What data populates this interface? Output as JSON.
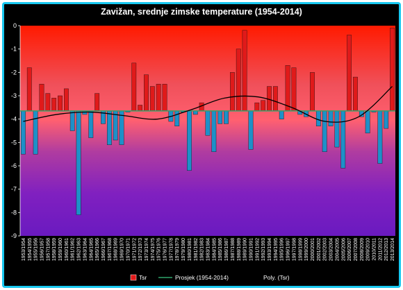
{
  "chart_data": {
    "type": "bar",
    "title": "Zavižan, srednje zimske temperature (1954-2014)",
    "xlabel": "",
    "ylabel": "",
    "ylim": [
      -9,
      0
    ],
    "yticks": [
      0,
      -1,
      -2,
      -3,
      -4,
      -5,
      -6,
      -7,
      -8,
      -9
    ],
    "baseline": -3.65,
    "grid": false,
    "legend_position": "bottom-right",
    "categories": [
      "1953/1954",
      "1954/1955",
      "1955/1956",
      "1956/1957",
      "1957/1958",
      "1958/1959",
      "1959/1960",
      "1960/1961",
      "1961/1962",
      "1962/1963",
      "1963/1964",
      "1964/1965",
      "1965/1966",
      "1966/1967",
      "1967/1968",
      "1968/1969",
      "1969/1970",
      "1970/1971",
      "1971/1972",
      "1972/1973",
      "1973/1974",
      "1974/1975",
      "1975/1976",
      "1976/1977",
      "1977/1978",
      "1978/1979",
      "1979/1980",
      "1980/1981",
      "1981/1982",
      "1982/1983",
      "1983/1984",
      "1984/1985",
      "1985/1986",
      "1986/1987",
      "1987/1988",
      "1988/1989",
      "1989/1990",
      "1990/1991",
      "1991/1992",
      "1992/1993",
      "1993/1994",
      "1994/1995",
      "1995/1996",
      "1996/1997",
      "1997/1998",
      "1998/1999",
      "1999/2000",
      "2000/2001",
      "2001/2002",
      "2002/2003",
      "2003/2004",
      "2004/2005",
      "2005/2006",
      "2006/2007",
      "2007/2008",
      "2008/2009",
      "2009/2010",
      "2010/2011",
      "2011/2012",
      "2012/2013",
      "2013/2014"
    ],
    "series": [
      {
        "name": "Tsr",
        "values": [
          -5.5,
          -1.8,
          -5.5,
          -2.5,
          -2.9,
          -3.1,
          -3.0,
          -2.7,
          -4.5,
          -8.1,
          -3.8,
          -4.8,
          -2.9,
          -4.2,
          -5.1,
          -4.9,
          -5.1,
          -3.7,
          -1.6,
          -3.4,
          -2.1,
          -2.6,
          -2.5,
          -2.5,
          -4.1,
          -4.3,
          -3.7,
          -6.2,
          -3.8,
          -3.3,
          -4.7,
          -5.4,
          -4.2,
          -4.2,
          -2.0,
          -1.0,
          -0.2,
          -5.3,
          -3.3,
          -3.2,
          -2.6,
          -2.6,
          -4.0,
          -1.7,
          -1.8,
          -3.8,
          -3.9,
          -2.0,
          -4.3,
          -5.4,
          -4.3,
          -5.2,
          -6.1,
          -0.4,
          -2.2,
          -3.9,
          -4.6,
          -3.7,
          -5.9,
          -4.4,
          -0.1
        ],
        "color": "#e01a1a"
      },
      {
        "name": "Prosjek (1954-2014)",
        "value": -3.65,
        "color": "#2fa46a"
      },
      {
        "name": "Poly. (Tsr)",
        "trend": [
          -4.1,
          -3.8,
          -3.7,
          -3.85,
          -4.0,
          -3.6,
          -3.1,
          -3.05,
          -3.5,
          -4.1,
          -3.9,
          -2.6
        ],
        "color": "#000000"
      }
    ],
    "negative_bar_color": "#1e90c8"
  }
}
